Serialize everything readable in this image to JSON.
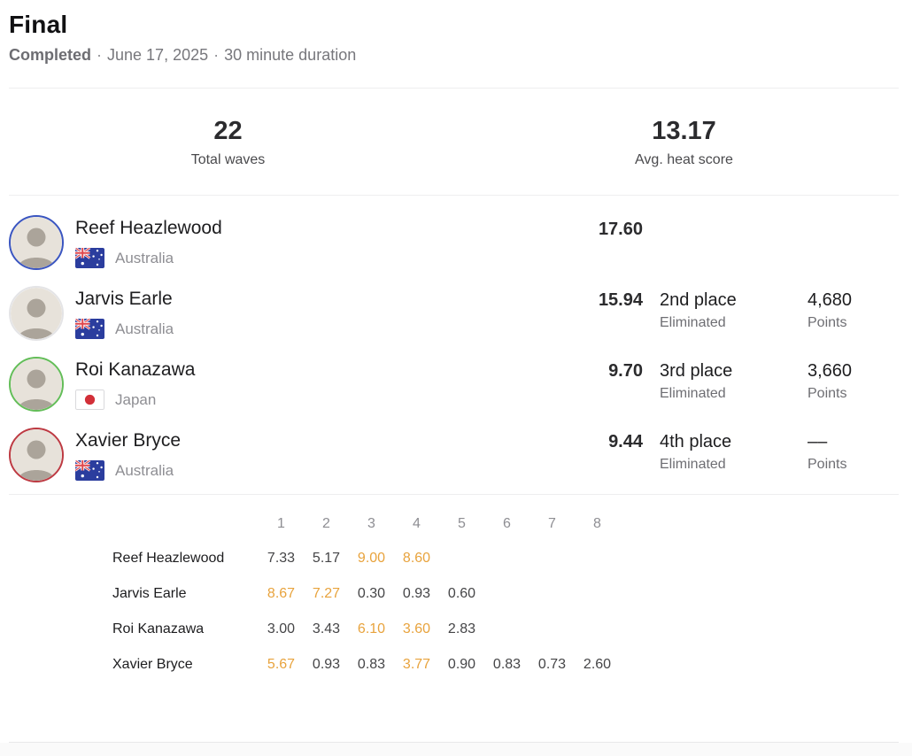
{
  "header": {
    "title": "Final",
    "status": "Completed",
    "separator": "·",
    "date": "June 17, 2025",
    "duration": "30 minute duration"
  },
  "stats": {
    "total_waves": {
      "value": "22",
      "label": "Total waves"
    },
    "avg_heat_score": {
      "value": "13.17",
      "label": "Avg. heat score"
    }
  },
  "athletes": [
    {
      "name": "Reef Heazlewood",
      "country": "Australia",
      "flag": "au",
      "jersey_color": "#3a55c0",
      "score": "17.60",
      "place": "",
      "status": "",
      "points": "",
      "points_label": ""
    },
    {
      "name": "Jarvis Earle",
      "country": "Australia",
      "flag": "au",
      "jersey_color": "#e4e4e6",
      "score": "15.94",
      "place": "2nd place",
      "status": "Eliminated",
      "points": "4,680",
      "points_label": "Points"
    },
    {
      "name": "Roi Kanazawa",
      "country": "Japan",
      "flag": "jp",
      "jersey_color": "#63bd58",
      "score": "9.70",
      "place": "3rd place",
      "status": "Eliminated",
      "points": "3,660",
      "points_label": "Points"
    },
    {
      "name": "Xavier Bryce",
      "country": "Australia",
      "flag": "au",
      "jersey_color": "#bd3a42",
      "score": "9.44",
      "place": "4th place",
      "status": "Eliminated",
      "points": "––",
      "points_label": "Points"
    }
  ],
  "wave_table": {
    "highlight_color": "#e8a33d",
    "columns": [
      "1",
      "2",
      "3",
      "4",
      "5",
      "6",
      "7",
      "8"
    ],
    "rows": [
      {
        "name": "Reef Heazlewood",
        "waves": [
          {
            "v": "7.33",
            "hl": false
          },
          {
            "v": "5.17",
            "hl": false
          },
          {
            "v": "9.00",
            "hl": true
          },
          {
            "v": "8.60",
            "hl": true
          }
        ]
      },
      {
        "name": "Jarvis Earle",
        "waves": [
          {
            "v": "8.67",
            "hl": true
          },
          {
            "v": "7.27",
            "hl": true
          },
          {
            "v": "0.30",
            "hl": false
          },
          {
            "v": "0.93",
            "hl": false
          },
          {
            "v": "0.60",
            "hl": false
          }
        ]
      },
      {
        "name": "Roi Kanazawa",
        "waves": [
          {
            "v": "3.00",
            "hl": false
          },
          {
            "v": "3.43",
            "hl": false
          },
          {
            "v": "6.10",
            "hl": true
          },
          {
            "v": "3.60",
            "hl": true
          },
          {
            "v": "2.83",
            "hl": false
          }
        ]
      },
      {
        "name": "Xavier Bryce",
        "waves": [
          {
            "v": "5.67",
            "hl": true
          },
          {
            "v": "0.93",
            "hl": false
          },
          {
            "v": "0.83",
            "hl": false
          },
          {
            "v": "3.77",
            "hl": true
          },
          {
            "v": "0.90",
            "hl": false
          },
          {
            "v": "0.83",
            "hl": false
          },
          {
            "v": "0.73",
            "hl": false
          },
          {
            "v": "2.60",
            "hl": false
          }
        ]
      }
    ]
  }
}
